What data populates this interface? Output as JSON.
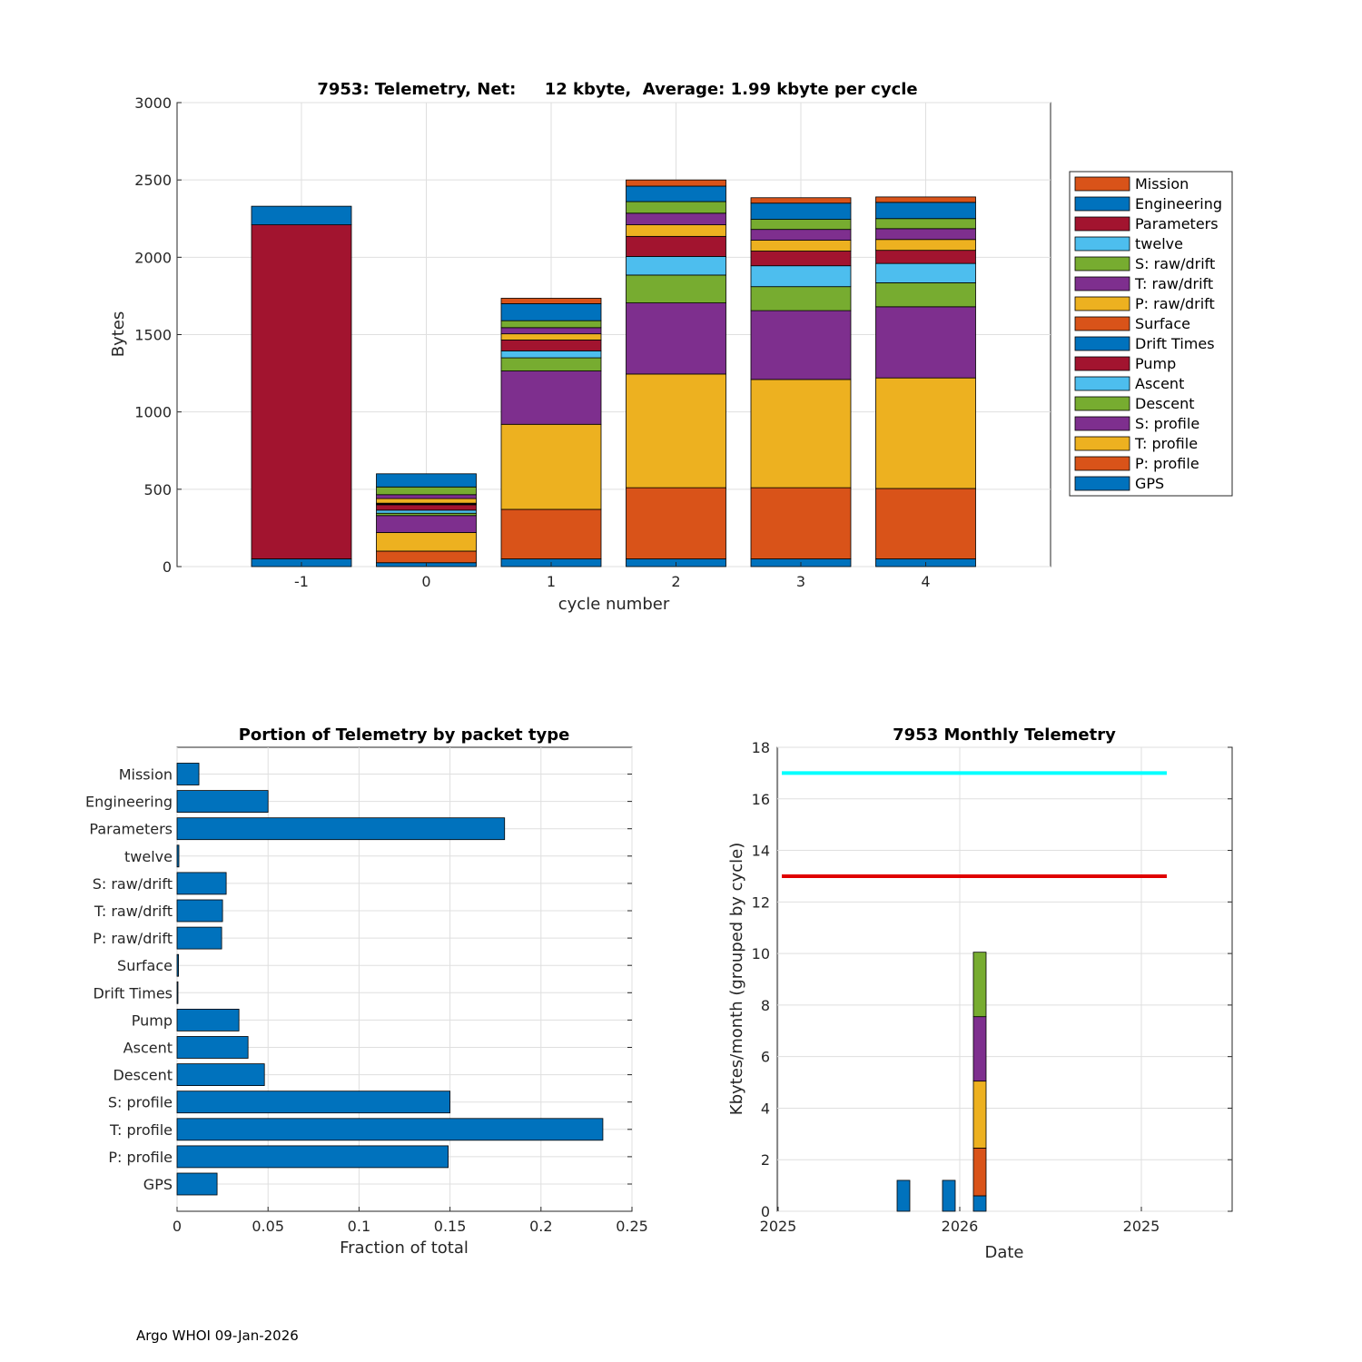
{
  "colors": {
    "blue": "#0072BD",
    "orange": "#D95319",
    "yellow": "#EDB120",
    "purple": "#7E2F8E",
    "green": "#77AC30",
    "cyan": "#4DBEEE",
    "red": "#A2142F",
    "line_cyan": "#00FFFF",
    "line_red": "#E00000"
  },
  "footer": "Argo WHOI 09-Jan-2026",
  "chart_data": [
    {
      "type": "bar",
      "stacked": true,
      "title": "7953: Telemetry, Net:     12 kbyte,  Average: 1.99 kbyte per cycle",
      "xlabel": "cycle number",
      "ylabel": "Bytes",
      "ylim": [
        0,
        3000
      ],
      "yticks": [
        0,
        500,
        1000,
        1500,
        2000,
        2500,
        3000
      ],
      "categories": [
        "-1",
        "0",
        "1",
        "2",
        "3",
        "4"
      ],
      "legend_placement": "right-outside",
      "series": [
        {
          "name": "GPS",
          "color": "#0072BD",
          "values": [
            50,
            25,
            50,
            50,
            50,
            50
          ]
        },
        {
          "name": "P: profile",
          "color": "#D95319",
          "values": [
            0,
            75,
            320,
            460,
            460,
            455
          ]
        },
        {
          "name": "T: profile",
          "color": "#EDB120",
          "values": [
            0,
            120,
            550,
            735,
            700,
            715
          ]
        },
        {
          "name": "S: profile",
          "color": "#7E2F8E",
          "values": [
            0,
            110,
            345,
            460,
            445,
            460
          ]
        },
        {
          "name": "Descent",
          "color": "#77AC30",
          "values": [
            0,
            15,
            85,
            180,
            155,
            155
          ]
        },
        {
          "name": "Ascent",
          "color": "#4DBEEE",
          "values": [
            0,
            20,
            45,
            120,
            135,
            125
          ]
        },
        {
          "name": "Pump",
          "color": "#A2142F",
          "values": [
            0,
            35,
            70,
            130,
            95,
            85
          ]
        },
        {
          "name": "Drift Times",
          "color": "#0072BD",
          "values": [
            0,
            5,
            0,
            0,
            0,
            0
          ]
        },
        {
          "name": "Surface",
          "color": "#D95319",
          "values": [
            0,
            5,
            0,
            0,
            0,
            0
          ]
        },
        {
          "name": "P: raw/drift",
          "color": "#EDB120",
          "values": [
            0,
            30,
            40,
            75,
            70,
            70
          ]
        },
        {
          "name": "T: raw/drift",
          "color": "#7E2F8E",
          "values": [
            0,
            25,
            40,
            75,
            70,
            70
          ]
        },
        {
          "name": "S: raw/drift",
          "color": "#77AC30",
          "values": [
            0,
            50,
            45,
            75,
            65,
            65
          ]
        },
        {
          "name": "twelve",
          "color": "#4DBEEE",
          "values": [
            0,
            0,
            0,
            0,
            0,
            0
          ]
        },
        {
          "name": "Parameters",
          "color": "#A2142F",
          "values": [
            2160,
            0,
            0,
            0,
            0,
            0
          ]
        },
        {
          "name": "Engineering",
          "color": "#0072BD",
          "values": [
            120,
            85,
            110,
            100,
            105,
            105
          ]
        },
        {
          "name": "Mission",
          "color": "#D95319",
          "values": [
            0,
            0,
            35,
            40,
            35,
            35
          ]
        }
      ]
    },
    {
      "type": "bar",
      "orientation": "horizontal",
      "title": "Portion of Telemetry by packet type",
      "xlabel": "Fraction of total",
      "ylabel": "",
      "xlim": [
        0,
        0.25
      ],
      "xticks": [
        "0",
        "0.05",
        "0.1",
        "0.15",
        "0.2",
        "0.25"
      ],
      "categories": [
        "GPS",
        "P: profile",
        "T: profile",
        "S: profile",
        "Descent",
        "Ascent",
        "Pump",
        "Drift Times",
        "Surface",
        "P: raw/drift",
        "T: raw/drift",
        "S: raw/drift",
        "twelve",
        "Parameters",
        "Engineering",
        "Mission"
      ],
      "values": [
        0.022,
        0.149,
        0.234,
        0.15,
        0.048,
        0.039,
        0.034,
        0.0005,
        0.0008,
        0.0245,
        0.025,
        0.027,
        0.001,
        0.18,
        0.05,
        0.012
      ]
    },
    {
      "type": "bar",
      "stacked": true,
      "title": "7953 Monthly Telemetry",
      "xlabel": "Date",
      "ylabel": "Kbytes/month (grouped by cycle)",
      "ylim": [
        0,
        18
      ],
      "yticks": [
        0,
        2,
        4,
        6,
        8,
        10,
        12,
        14,
        16,
        18
      ],
      "xtick_labels": [
        "2025",
        "2026",
        "2025"
      ],
      "bars": [
        {
          "position": 0.69,
          "segments": [
            {
              "color": "#0072BD",
              "value": 1.2
            }
          ]
        },
        {
          "position": 0.94,
          "segments": [
            {
              "color": "#0072BD",
              "value": 1.2
            }
          ]
        },
        {
          "position": 1.11,
          "segments": [
            {
              "color": "#0072BD",
              "value": 0.6
            },
            {
              "color": "#D95319",
              "value": 1.85
            },
            {
              "color": "#EDB120",
              "value": 2.6
            },
            {
              "color": "#7E2F8E",
              "value": 2.5
            },
            {
              "color": "#77AC30",
              "value": 2.5
            }
          ]
        }
      ],
      "hlines": [
        {
          "value": 17,
          "color": "#00FFFF",
          "from": 0.02,
          "to": 2.14
        },
        {
          "value": 13,
          "color": "#E00000",
          "from": 0.02,
          "to": 2.14
        }
      ]
    }
  ]
}
